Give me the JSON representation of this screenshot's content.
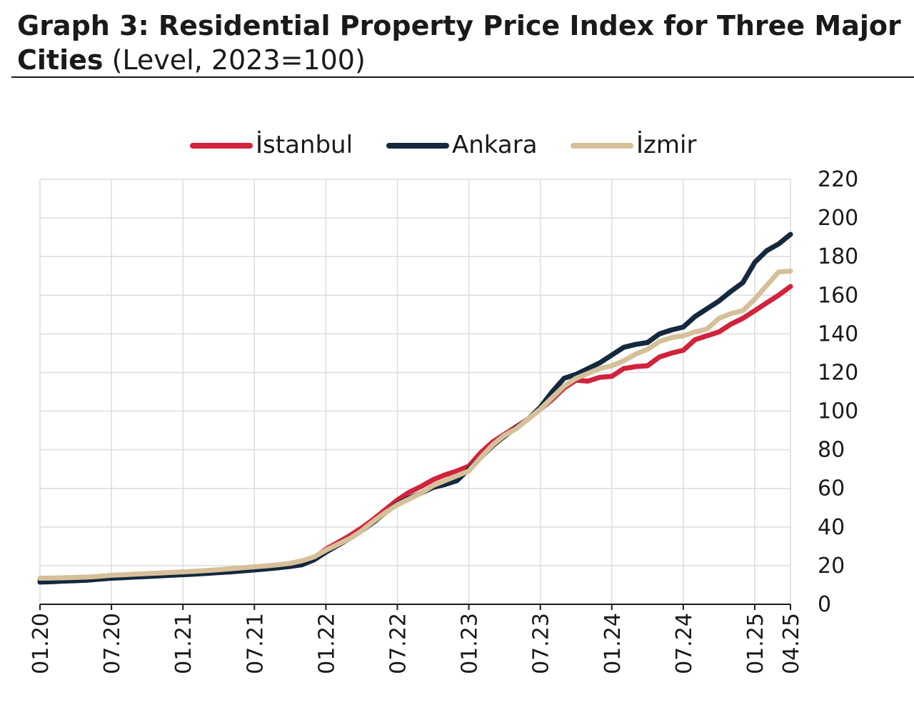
{
  "title_bold": "Graph 3: Residential Property Price Index for Three Major Cities",
  "title_normal": "(Level, 2023=100)",
  "chart_data": {
    "type": "line",
    "title": "Graph 3: Residential Property Price Index for Three Major Cities (Level, 2023=100)",
    "xlabel": "",
    "ylabel": "",
    "ylim": [
      0,
      220
    ],
    "yticks": [
      "0",
      "20",
      "40",
      "60",
      "80",
      "100",
      "120",
      "140",
      "160",
      "180",
      "200",
      "220"
    ],
    "ytick_values": [
      0,
      20,
      40,
      60,
      80,
      100,
      120,
      140,
      160,
      180,
      200,
      220
    ],
    "xticks": [
      "01.20",
      "07.20",
      "01.21",
      "07.21",
      "01.22",
      "07.22",
      "01.23",
      "07.23",
      "01.24",
      "07.24",
      "01.25",
      "04.25"
    ],
    "xtick_index": [
      0,
      6,
      12,
      18,
      24,
      30,
      36,
      42,
      48,
      54,
      60,
      63
    ],
    "grid": true,
    "legend_position": "top",
    "x_start": "01.20",
    "series": [
      {
        "name": "İstanbul",
        "color": "#d2233c",
        "values": [
          12.5,
          12.6,
          12.8,
          13.0,
          13.2,
          13.6,
          14.2,
          14.6,
          14.8,
          15.0,
          15.3,
          15.6,
          15.9,
          16.2,
          16.6,
          17.0,
          17.5,
          18.0,
          18.6,
          19.2,
          19.8,
          20.5,
          21.5,
          24.0,
          28.5,
          32.0,
          35.5,
          39.5,
          44.0,
          49.0,
          54.0,
          58.0,
          61.0,
          64.5,
          67.0,
          69.0,
          71.5,
          78.5,
          84.0,
          88.0,
          92.0,
          96.0,
          101.0,
          106.0,
          112.0,
          116.0,
          115.5,
          117.5,
          118.0,
          122.0,
          123.0,
          123.5,
          128.0,
          130.0,
          131.5,
          137.0,
          139.0,
          141.0,
          145.0,
          148.0,
          152.0,
          156.0,
          160.0,
          164.5
        ]
      },
      {
        "name": "Ankara",
        "color": "#14283e",
        "values": [
          11.5,
          11.7,
          12.0,
          12.2,
          12.5,
          13.0,
          13.5,
          13.8,
          14.1,
          14.4,
          14.7,
          15.0,
          15.3,
          15.6,
          16.0,
          16.4,
          16.8,
          17.3,
          17.8,
          18.3,
          18.9,
          19.6,
          20.5,
          23.0,
          27.0,
          30.5,
          34.0,
          38.0,
          42.5,
          47.5,
          52.0,
          55.0,
          57.5,
          60.5,
          62.0,
          64.0,
          70.0,
          76.0,
          82.0,
          87.0,
          91.5,
          96.0,
          102.0,
          110.0,
          117.0,
          119.0,
          122.0,
          125.0,
          129.0,
          133.0,
          134.5,
          135.5,
          140.0,
          142.0,
          143.5,
          149.0,
          153.0,
          157.0,
          162.0,
          166.5,
          177.0,
          183.0,
          186.5,
          191.5
        ]
      },
      {
        "name": "İzmir",
        "color": "#d5c09a",
        "values": [
          13.5,
          13.6,
          13.7,
          13.9,
          14.1,
          14.5,
          15.0,
          15.3,
          15.6,
          15.9,
          16.2,
          16.5,
          16.8,
          17.1,
          17.5,
          17.9,
          18.4,
          18.9,
          19.4,
          19.9,
          20.5,
          21.2,
          22.5,
          24.5,
          28.0,
          31.0,
          34.0,
          38.0,
          43.0,
          47.5,
          51.5,
          54.5,
          57.5,
          61.5,
          64.0,
          66.5,
          69.0,
          76.0,
          82.5,
          87.5,
          91.0,
          96.0,
          101.0,
          107.0,
          113.0,
          117.0,
          119.5,
          122.0,
          123.5,
          126.0,
          129.5,
          132.0,
          136.0,
          138.0,
          139.0,
          141.0,
          142.5,
          148.0,
          150.5,
          152.0,
          158.0,
          165.0,
          172.0,
          172.5
        ]
      }
    ]
  }
}
